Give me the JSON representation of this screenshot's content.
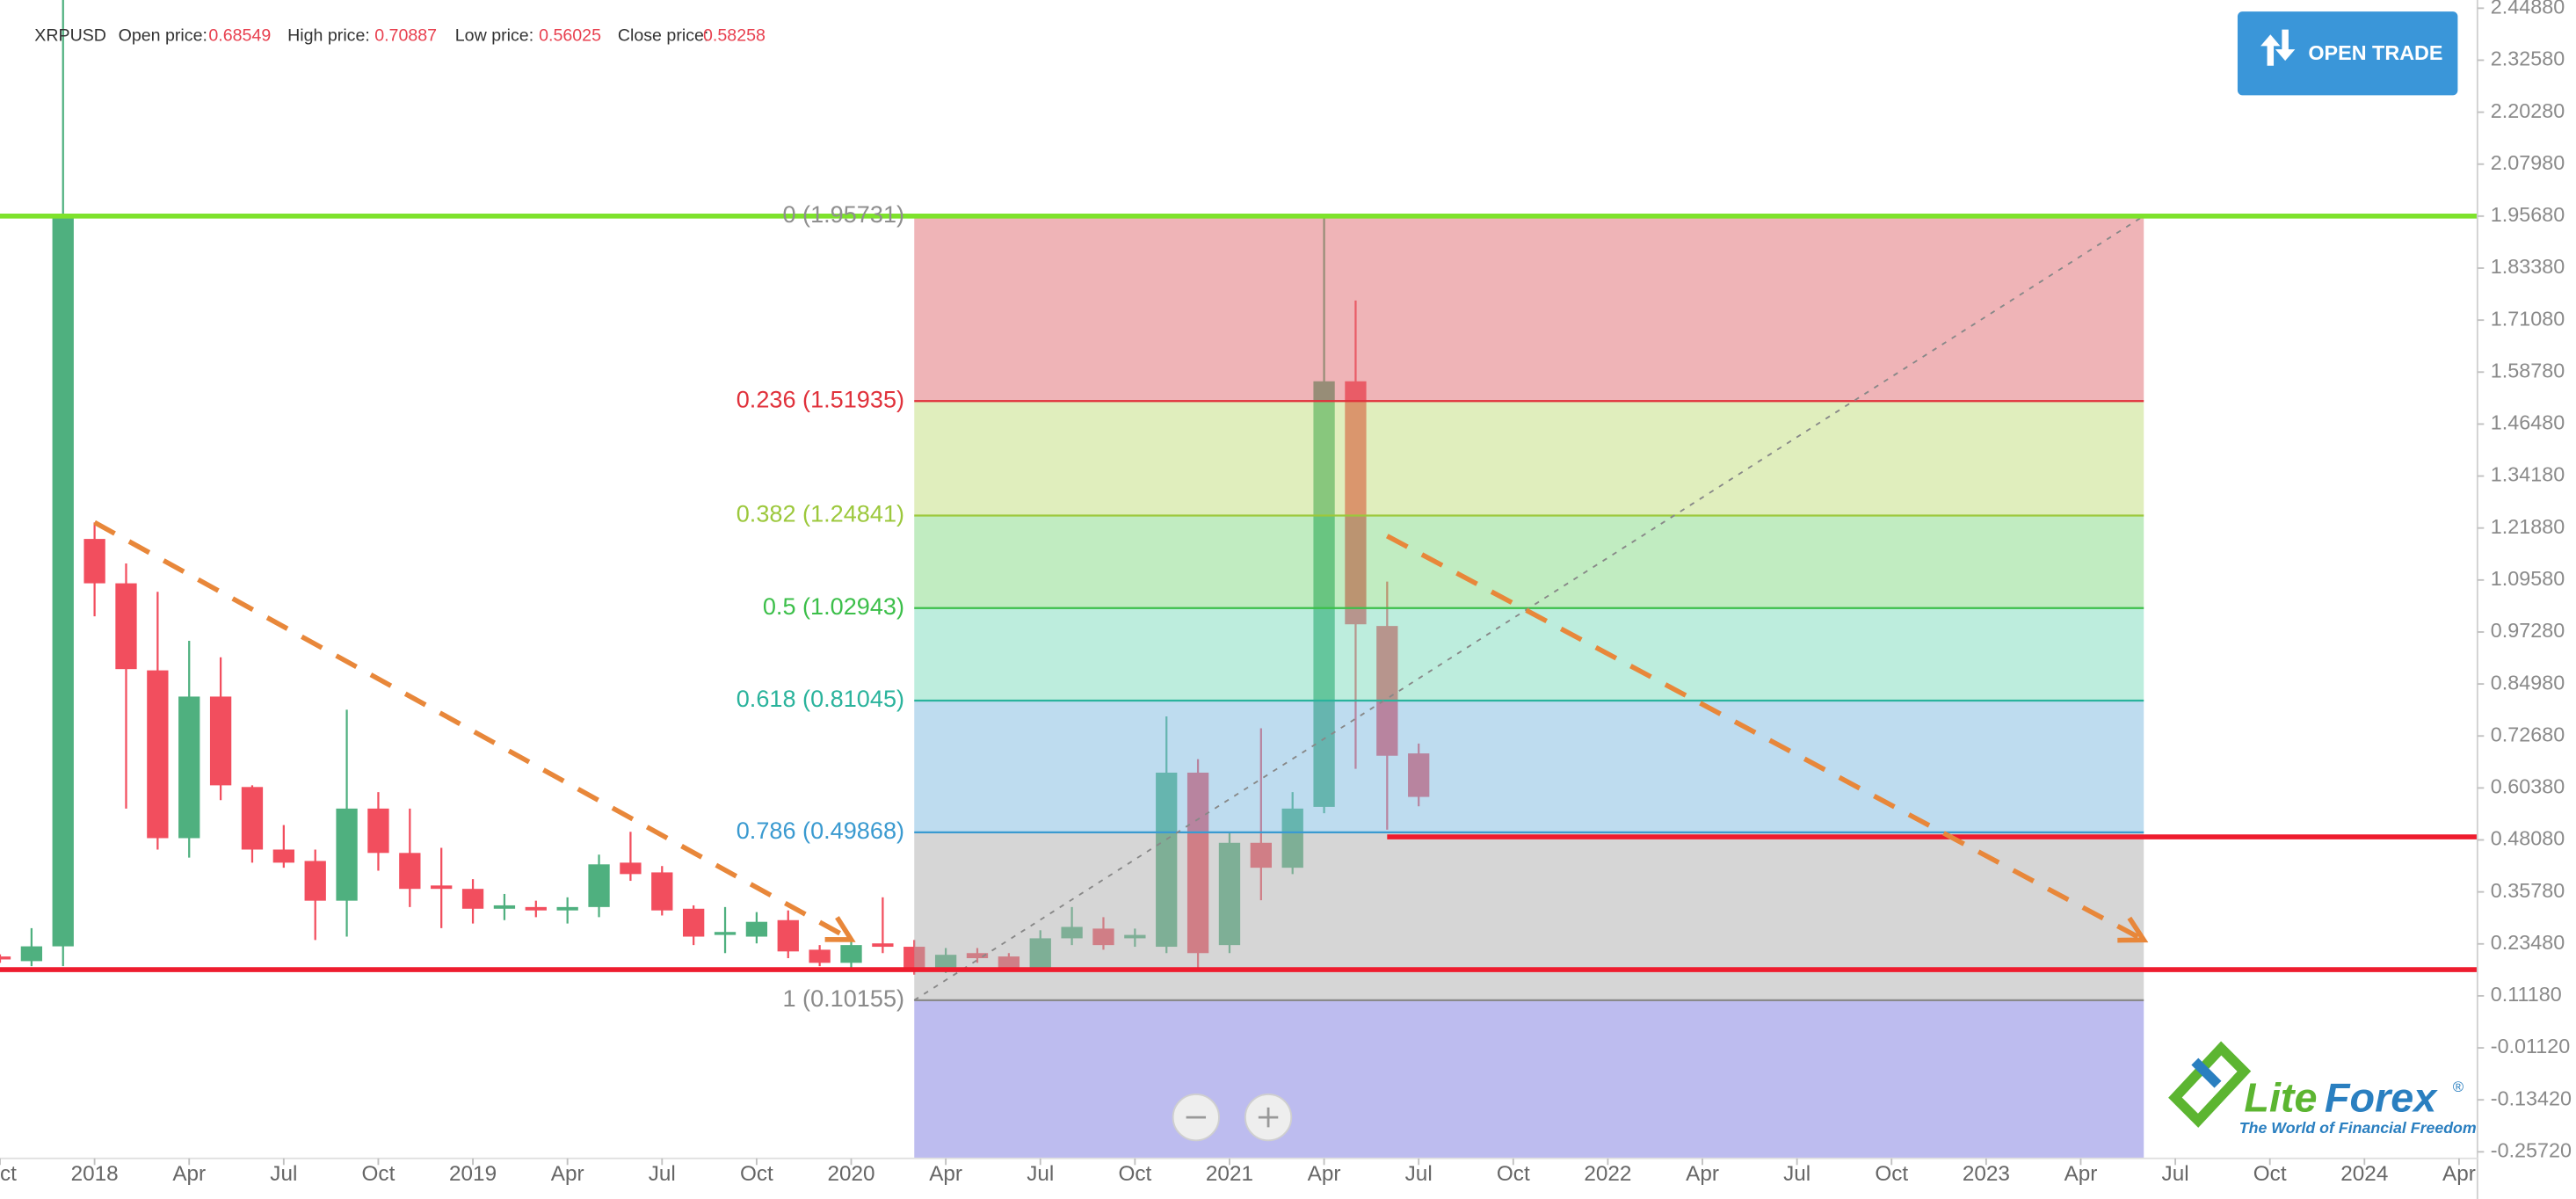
{
  "chart_data": {
    "type": "candlestick",
    "symbol": "XRPUSD",
    "header_labels": {
      "open": "Open price:",
      "high": "High price:",
      "low": "Low price:",
      "close": "Close price:"
    },
    "x": [
      "2017-10",
      "2017-11",
      "2017-12",
      "2018-01",
      "2018-02",
      "2018-03",
      "2018-04",
      "2018-05",
      "2018-06",
      "2018-07",
      "2018-08",
      "2018-09",
      "2018-10",
      "2018-11",
      "2018-12",
      "2019-01",
      "2019-02",
      "2019-03",
      "2019-04",
      "2019-05",
      "2019-06",
      "2019-07",
      "2019-08",
      "2019-09",
      "2019-10",
      "2019-11",
      "2019-12",
      "2020-01",
      "2020-02",
      "2020-03",
      "2020-04",
      "2020-05",
      "2020-06",
      "2020-07",
      "2020-08",
      "2020-09",
      "2020-10",
      "2020-11",
      "2020-12",
      "2021-01",
      "2021-02",
      "2021-03",
      "2021-04",
      "2021-05",
      "2021-06",
      "2021-07"
    ],
    "open": [
      0.205,
      0.194,
      0.229,
      1.193,
      1.088,
      0.882,
      0.485,
      0.82,
      0.606,
      0.458,
      0.431,
      0.337,
      0.555,
      0.45,
      0.373,
      0.365,
      0.318,
      0.322,
      0.314,
      0.322,
      0.427,
      0.404,
      0.318,
      0.256,
      0.252,
      0.291,
      0.221,
      0.19,
      0.236,
      0.228,
      0.178,
      0.213,
      0.205,
      0.174,
      0.248,
      0.271,
      0.248,
      0.228,
      0.64,
      0.232,
      0.474,
      0.415,
      0.559,
      1.566,
      0.987,
      0.68549
    ],
    "high": [
      0.21,
      0.272,
      2.85,
      1.232,
      1.135,
      1.068,
      0.952,
      0.913,
      0.61,
      0.516,
      0.458,
      0.789,
      0.594,
      0.555,
      0.462,
      0.388,
      0.353,
      0.337,
      0.345,
      0.446,
      0.5,
      0.419,
      0.326,
      0.322,
      0.31,
      0.314,
      0.232,
      0.252,
      0.345,
      0.244,
      0.225,
      0.225,
      0.213,
      0.267,
      0.322,
      0.298,
      0.271,
      0.773,
      0.672,
      0.497,
      0.745,
      0.594,
      1.959,
      1.757,
      1.092,
      0.70887
    ],
    "low": [
      0.19,
      0.182,
      0.182,
      1.01,
      0.555,
      0.458,
      0.439,
      0.575,
      0.427,
      0.415,
      0.244,
      0.252,
      0.408,
      0.322,
      0.272,
      0.283,
      0.291,
      0.298,
      0.283,
      0.298,
      0.384,
      0.302,
      0.232,
      0.213,
      0.236,
      0.201,
      0.182,
      0.178,
      0.213,
      0.162,
      0.166,
      0.19,
      0.17,
      0.17,
      0.232,
      0.221,
      0.228,
      0.213,
      0.174,
      0.213,
      0.338,
      0.4,
      0.544,
      0.649,
      0.505,
      0.56025
    ],
    "close": [
      0.198,
      0.229,
      1.959,
      1.088,
      0.885,
      0.485,
      0.82,
      0.61,
      0.458,
      0.427,
      0.337,
      0.555,
      0.45,
      0.365,
      0.365,
      0.318,
      0.326,
      0.314,
      0.322,
      0.423,
      0.4,
      0.314,
      0.252,
      0.263,
      0.287,
      0.217,
      0.19,
      0.232,
      0.228,
      0.178,
      0.209,
      0.201,
      0.174,
      0.248,
      0.275,
      0.232,
      0.256,
      0.64,
      0.213,
      0.474,
      0.415,
      0.555,
      1.566,
      0.991,
      0.68,
      0.58258
    ],
    "up_color": "#4fb07f",
    "down_color": "#f24e5e",
    "xlim": [
      "2017-10",
      "2024-05"
    ],
    "xticks": [
      {
        "value": "2017-10",
        "label": "Oct"
      },
      {
        "value": "2018-01",
        "label": "2018"
      },
      {
        "value": "2018-04",
        "label": "Apr"
      },
      {
        "value": "2018-07",
        "label": "Jul"
      },
      {
        "value": "2018-10",
        "label": "Oct"
      },
      {
        "value": "2019-01",
        "label": "2019"
      },
      {
        "value": "2019-04",
        "label": "Apr"
      },
      {
        "value": "2019-07",
        "label": "Jul"
      },
      {
        "value": "2019-10",
        "label": "Oct"
      },
      {
        "value": "2020-01",
        "label": "2020"
      },
      {
        "value": "2020-04",
        "label": "Apr"
      },
      {
        "value": "2020-07",
        "label": "Jul"
      },
      {
        "value": "2020-10",
        "label": "Oct"
      },
      {
        "value": "2021-01",
        "label": "2021"
      },
      {
        "value": "2021-04",
        "label": "Apr"
      },
      {
        "value": "2021-07",
        "label": "Jul"
      },
      {
        "value": "2021-10",
        "label": "Oct"
      },
      {
        "value": "2022-01",
        "label": "2022"
      },
      {
        "value": "2022-04",
        "label": "Apr"
      },
      {
        "value": "2022-07",
        "label": "Jul"
      },
      {
        "value": "2022-10",
        "label": "Oct"
      },
      {
        "value": "2023-01",
        "label": "2023"
      },
      {
        "value": "2023-04",
        "label": "Apr"
      },
      {
        "value": "2023-07",
        "label": "Jul"
      },
      {
        "value": "2023-10",
        "label": "Oct"
      },
      {
        "value": "2024-01",
        "label": "2024"
      },
      {
        "value": "2024-04",
        "label": "Apr"
      }
    ],
    "ylim": [
      -0.2728,
      2.4682
    ],
    "yticks": [
      {
        "value": 2.4488,
        "label": "2.44880"
      },
      {
        "value": 2.3258,
        "label": "2.32580"
      },
      {
        "value": 2.2028,
        "label": "2.20280"
      },
      {
        "value": 2.0798,
        "label": "2.07980"
      },
      {
        "value": 1.9568,
        "label": "1.95680"
      },
      {
        "value": 1.8338,
        "label": "1.83380"
      },
      {
        "value": 1.7108,
        "label": "1.71080"
      },
      {
        "value": 1.5878,
        "label": "1.58780"
      },
      {
        "value": 1.4648,
        "label": "1.46480"
      },
      {
        "value": 1.3418,
        "label": "1.34180"
      },
      {
        "value": 1.2188,
        "label": "1.21880"
      },
      {
        "value": 1.0958,
        "label": "1.09580"
      },
      {
        "value": 0.9728,
        "label": "0.97280"
      },
      {
        "value": 0.8498,
        "label": "0.84980"
      },
      {
        "value": 0.7268,
        "label": "0.72680"
      },
      {
        "value": 0.6038,
        "label": "0.60380"
      },
      {
        "value": 0.4808,
        "label": "0.48080"
      },
      {
        "value": 0.3578,
        "label": "0.35780"
      },
      {
        "value": 0.2348,
        "label": "0.23480"
      },
      {
        "value": 0.1118,
        "label": "0.11180"
      },
      {
        "value": -0.0112,
        "label": "-0.01120"
      },
      {
        "value": -0.1342,
        "label": "-0.13420"
      },
      {
        "value": -0.2572,
        "label": "-0.25720"
      }
    ],
    "fibonacci": {
      "start": "2020-03",
      "end": "2023-06",
      "levels": [
        {
          "value": 1.95731,
          "label": "0 (1.95731)",
          "color": "#8f8f8f",
          "fill": "#e06a6f"
        },
        {
          "value": 1.51935,
          "label": "0.236 (1.51935)",
          "color": "#e0313b",
          "fill": "#c1dd7b"
        },
        {
          "value": 1.24841,
          "label": "0.382 (1.24841)",
          "color": "#9cc83c",
          "fill": "#83d983"
        },
        {
          "value": 1.02943,
          "label": "0.5 (1.02943)",
          "color": "#3cbf4a",
          "fill": "#7cdcbb"
        },
        {
          "value": 0.81045,
          "label": "0.618 (0.81045)",
          "color": "#2ab39c",
          "fill": "#7db9df"
        },
        {
          "value": 0.49868,
          "label": "0.786 (0.49868)",
          "color": "#3a9ad0",
          "fill": "#adadad"
        },
        {
          "value": 0.10155,
          "label": "1 (0.10155)",
          "color": "#8a8a8a",
          "fill": "#7b79df"
        }
      ]
    },
    "hlines": [
      {
        "value": 1.957,
        "color": "#7ee22c"
      },
      {
        "value": 0.174,
        "color": "#ee1c2e"
      },
      {
        "value": 0.488,
        "color": "#ee1c2e",
        "from": "2021-06"
      }
    ],
    "trend_arrows": [
      {
        "x": [
          "2018-01",
          "2020-01"
        ],
        "y": [
          1.232,
          0.245
        ],
        "color": "#e8873a"
      },
      {
        "x": [
          "2021-06",
          "2023-06"
        ],
        "y": [
          1.2,
          0.244
        ],
        "color": "#e8873a"
      }
    ],
    "button": "OPEN TRADE",
    "logo": {
      "parts": [
        "Lite",
        "Forex"
      ],
      "mark": "®",
      "tagline": "The World of Financial Freedom"
    }
  }
}
